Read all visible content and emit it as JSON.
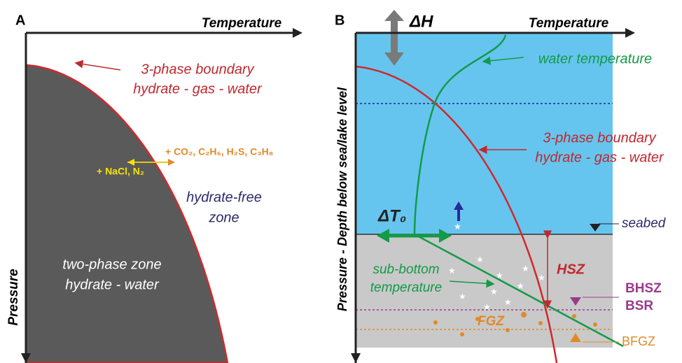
{
  "panel_a": {
    "label": "A",
    "x_axis": "Temperature",
    "y_axis": "Pressure",
    "boundary": [
      "3-phase boundary",
      "hydrate - gas - water"
    ],
    "shift_right": "+ CO₂, C₂H₆, H₂S, C₃H₈",
    "shift_left": "+ NaCl, N₂",
    "free_zone": [
      "hydrate-free",
      "zone"
    ],
    "two_phase": [
      "two-phase zone",
      "hydrate - water"
    ]
  },
  "panel_b": {
    "label": "B",
    "delta_h": "ΔH",
    "x_axis": "Temperature",
    "y_axis": "Pressure - Depth below sea/lake level",
    "water_temperature": "water temperature",
    "boundary": [
      "3-phase boundary",
      "hydrate - gas - water"
    ],
    "delta_t": "ΔT₀",
    "seabed": "seabed",
    "sub_bottom": [
      "sub-bottom",
      "temperature"
    ],
    "hsz": "HSZ",
    "bhsz": "BHSZ",
    "bsr": "BSR",
    "fgz": "FGZ",
    "bfgz": "BFGZ"
  }
}
